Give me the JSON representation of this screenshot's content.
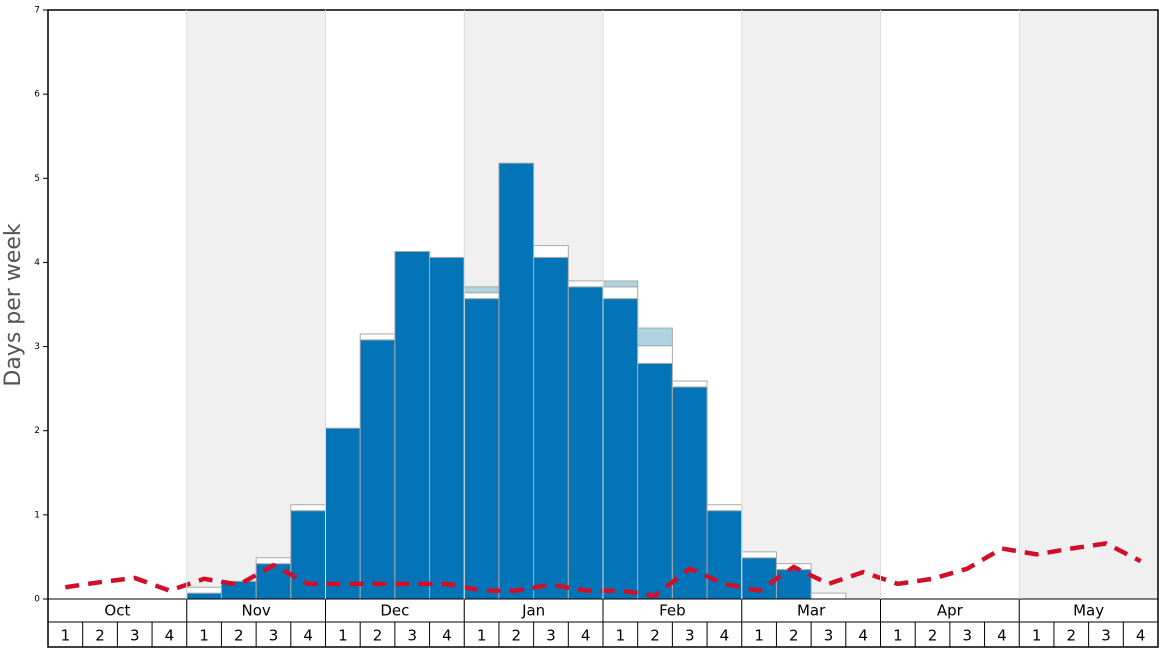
{
  "chart_data": {
    "type": "bar",
    "y_label": "Days per week",
    "months": [
      "Oct",
      "Nov",
      "Dec",
      "Jan",
      "Feb",
      "Mar",
      "Apr",
      "May"
    ],
    "week_labels": [
      1,
      2,
      3,
      4
    ],
    "ylim": [
      0,
      7
    ],
    "yticks": [
      0,
      1,
      2,
      3,
      4,
      5,
      6,
      7
    ],
    "series": [
      {
        "color": "#0474b8",
        "values": [
          0,
          0,
          0,
          0,
          0.07,
          0.21,
          0.42,
          1.05,
          2.03,
          3.08,
          4.13,
          4.06,
          3.57,
          5.18,
          4.06,
          3.71,
          3.57,
          2.8,
          2.52,
          1.05,
          0.49,
          0.35,
          0,
          0,
          0,
          0,
          0,
          0,
          0,
          0,
          0,
          0
        ]
      },
      {
        "color": "#ffffff",
        "values": [
          0,
          0,
          0,
          0,
          0.07,
          0,
          0.07,
          0.07,
          0,
          0.07,
          0,
          0,
          0.07,
          0,
          0.14,
          0.07,
          0.14,
          0.21,
          0.07,
          0.07,
          0.07,
          0.07,
          0.07,
          0,
          0,
          0,
          0,
          0,
          0,
          0,
          0,
          0
        ]
      },
      {
        "color": "#aed4e0",
        "values": [
          0,
          0,
          0,
          0,
          0,
          0,
          0,
          0,
          0,
          0,
          0,
          0,
          0.07,
          0,
          0,
          0,
          0.07,
          0.21,
          0,
          0,
          0,
          0,
          0,
          0,
          0,
          0,
          0,
          0,
          0,
          0,
          0,
          0
        ]
      }
    ],
    "line": {
      "type": "line",
      "color": "#d0102a",
      "values": [
        0.14,
        0.2,
        0.25,
        0.1,
        0.24,
        0.17,
        0.4,
        0.18,
        0.18,
        0.18,
        0.18,
        0.18,
        0.1,
        0.1,
        0.17,
        0.1,
        0.1,
        0.04,
        0.36,
        0.18,
        0.1,
        0.38,
        0.18,
        0.32,
        0.18,
        0.24,
        0.36,
        0.6,
        0.53,
        0.6,
        0.66,
        0.45
      ]
    },
    "shade_color": "#f0f0f0"
  }
}
